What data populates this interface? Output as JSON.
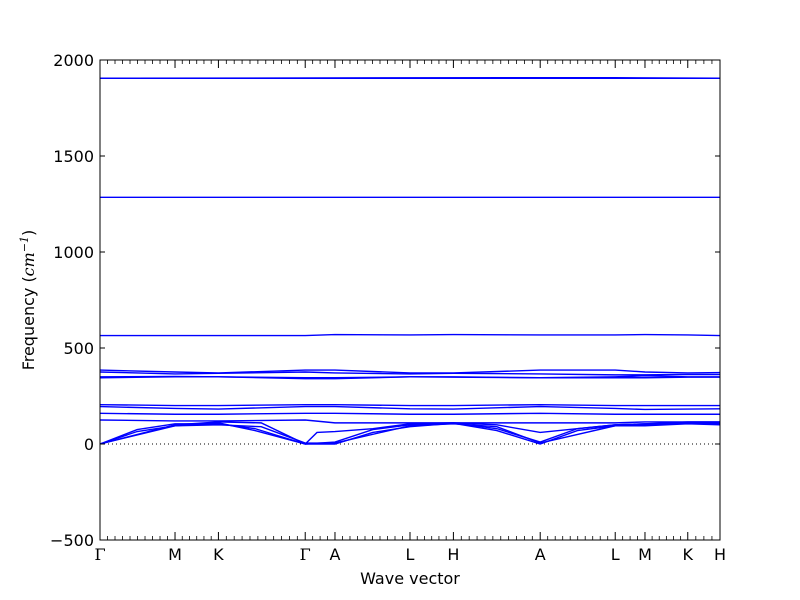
{
  "chart_data": {
    "type": "line",
    "xlabel": "Wave vector",
    "ylabel": "Frequency (cm⁻¹)",
    "ylabel_prefix": "Frequency (",
    "ylabel_unit": "cm",
    "ylabel_exp": "−1",
    "ylabel_suffix": ")",
    "ylim": [
      -500,
      2000
    ],
    "yticks": [
      -500,
      0,
      500,
      1000,
      1500,
      2000
    ],
    "ytick_labels": [
      "−500",
      "0",
      "500",
      "1000",
      "1500",
      "2000"
    ],
    "xlim": [
      0,
      1
    ],
    "high_symmetry_points": [
      {
        "label": "Γ",
        "x": 0.0
      },
      {
        "label": "M",
        "x": 0.121
      },
      {
        "label": "K",
        "x": 0.191
      },
      {
        "label": "Γ",
        "x": 0.331
      },
      {
        "label": "A",
        "x": 0.379
      },
      {
        "label": "L",
        "x": 0.5
      },
      {
        "label": "H",
        "x": 0.57
      },
      {
        "label": "A",
        "x": 0.71
      },
      {
        "label": "L",
        "x": 0.831
      },
      {
        "label": "M",
        "x": 0.879
      },
      {
        "label": "K",
        "x": 0.948
      },
      {
        "label": "H",
        "x": 1.0
      }
    ],
    "zero_line": {
      "y": 0,
      "style": "dotted"
    },
    "color": "#0000ff",
    "grid": false,
    "series": [
      {
        "x": [
          0,
          0.121,
          0.191,
          0.331,
          0.379,
          0.5,
          0.57,
          0.71,
          0.831,
          0.879,
          0.948,
          1.0
        ],
        "values": [
          1905,
          1905,
          1905,
          1905,
          1905,
          1905,
          1905,
          1905,
          1905,
          1905,
          1905,
          1905
        ]
      },
      {
        "x": [
          0,
          0.71,
          0.83,
          1.0
        ],
        "values": [
          1905,
          1908,
          1908,
          1905
        ]
      },
      {
        "x": [
          0,
          0.5,
          1.0
        ],
        "values": [
          1285,
          1285,
          1285
        ]
      },
      {
        "x": [
          0,
          0.121,
          0.191,
          0.331,
          0.379,
          0.5,
          0.57,
          0.71,
          0.831,
          0.879,
          0.948,
          1.0
        ],
        "values": [
          565,
          565,
          565,
          565,
          570,
          568,
          570,
          568,
          568,
          570,
          568,
          565
        ]
      },
      {
        "x": [
          0,
          0.121,
          0.191,
          0.331,
          0.379,
          0.5,
          0.57,
          0.71,
          0.831,
          0.879,
          0.948,
          1.0
        ],
        "values": [
          385,
          375,
          370,
          385,
          385,
          370,
          370,
          385,
          385,
          375,
          370,
          372
        ]
      },
      {
        "x": [
          0,
          0.121,
          0.191,
          0.331,
          0.379,
          0.5,
          0.57,
          0.71,
          0.831,
          0.879,
          0.948,
          1.0
        ],
        "values": [
          375,
          365,
          368,
          375,
          370,
          365,
          368,
          365,
          360,
          360,
          362,
          362
        ]
      },
      {
        "x": [
          0,
          0.121,
          0.191,
          0.331,
          0.379,
          0.5,
          0.57,
          0.71,
          0.831,
          0.879,
          0.948,
          1.0
        ],
        "values": [
          345,
          350,
          350,
          340,
          340,
          350,
          350,
          345,
          350,
          355,
          350,
          350
        ]
      },
      {
        "x": [
          0,
          0.121,
          0.191,
          0.331,
          0.379,
          0.5,
          0.57,
          0.71,
          0.831,
          0.879,
          0.948,
          1.0
        ],
        "values": [
          350,
          352,
          350,
          345,
          345,
          350,
          348,
          345,
          345,
          345,
          348,
          348
        ]
      },
      {
        "x": [
          0,
          0.121,
          0.191,
          0.331,
          0.379,
          0.5,
          0.57,
          0.71,
          0.831,
          0.879,
          0.948,
          1.0
        ],
        "values": [
          205,
          200,
          200,
          205,
          205,
          200,
          200,
          205,
          200,
          200,
          200,
          200
        ]
      },
      {
        "x": [
          0,
          0.121,
          0.191,
          0.331,
          0.379,
          0.5,
          0.57,
          0.71,
          0.831,
          0.879,
          0.948,
          1.0
        ],
        "values": [
          195,
          185,
          182,
          195,
          195,
          183,
          182,
          195,
          185,
          180,
          182,
          183
        ]
      },
      {
        "x": [
          0,
          0.121,
          0.191,
          0.331,
          0.379,
          0.5,
          0.57,
          0.71,
          0.831,
          0.879,
          0.948,
          1.0
        ],
        "values": [
          160,
          155,
          155,
          160,
          160,
          155,
          155,
          160,
          155,
          155,
          155,
          155
        ]
      },
      {
        "x": [
          0,
          0.121,
          0.191,
          0.331,
          0.379,
          0.5,
          0.57,
          0.71,
          0.831,
          0.879,
          0.948,
          1.0
        ],
        "values": [
          125,
          120,
          120,
          125,
          110,
          110,
          110,
          110,
          110,
          115,
          115,
          115
        ]
      },
      {
        "x": [
          0,
          0.06,
          0.121,
          0.191,
          0.25,
          0.331,
          0.379,
          0.44,
          0.5,
          0.57,
          0.64,
          0.71,
          0.77,
          0.831,
          0.879,
          0.948,
          1.0
        ],
        "values": [
          0,
          65,
          95,
          110,
          70,
          0,
          0,
          60,
          90,
          108,
          70,
          0,
          70,
          95,
          100,
          110,
          108
        ]
      },
      {
        "x": [
          0,
          0.06,
          0.121,
          0.191,
          0.25,
          0.331,
          0.379,
          0.44,
          0.5,
          0.57,
          0.64,
          0.71,
          0.77,
          0.831,
          0.879,
          0.948,
          1.0
        ],
        "values": [
          0,
          75,
          105,
          105,
          80,
          0,
          10,
          75,
          100,
          110,
          80,
          10,
          80,
          100,
          105,
          108,
          105
        ]
      },
      {
        "x": [
          0,
          0.121,
          0.191,
          0.26,
          0.331,
          0.35,
          0.379,
          0.44,
          0.5,
          0.57,
          0.64,
          0.71,
          0.831,
          0.879,
          0.948,
          1.0
        ],
        "values": [
          0,
          100,
          115,
          110,
          0,
          60,
          65,
          80,
          105,
          110,
          100,
          60,
          100,
          105,
          115,
          115
        ]
      },
      {
        "x": [
          0,
          0.121,
          0.191,
          0.26,
          0.331,
          0.379,
          0.5,
          0.57,
          0.64,
          0.71,
          0.831,
          0.879,
          0.948,
          1.0
        ],
        "values": [
          0,
          95,
          100,
          90,
          5,
          5,
          95,
          105,
          90,
          5,
          95,
          95,
          105,
          100
        ]
      }
    ]
  }
}
